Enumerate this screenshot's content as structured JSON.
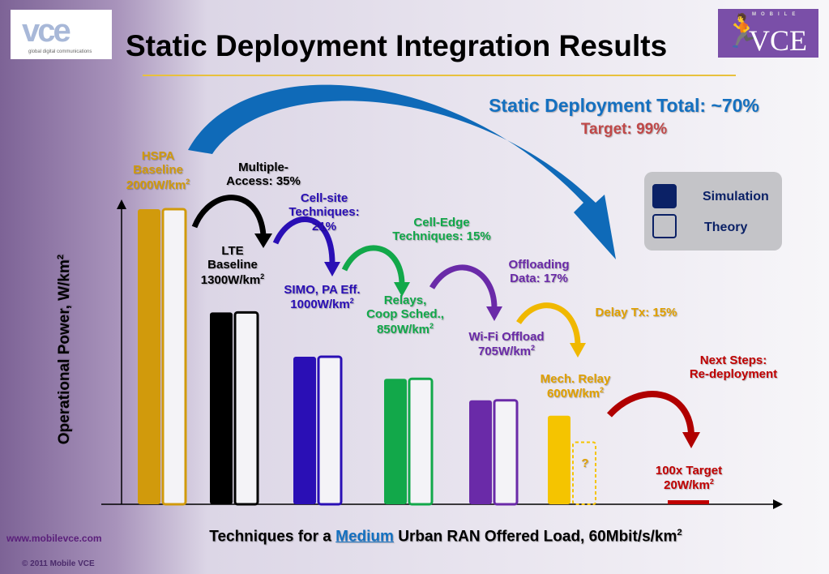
{
  "header": {
    "title": "Static Deployment Integration Results",
    "logo_left_text": "vce",
    "logo_left_sub": "global digital communications",
    "logo_right_top": "MOBILE",
    "logo_right_text": "VCE"
  },
  "summary": {
    "total": "Static Deployment Total: ~70%",
    "target": "Target: 99%"
  },
  "legend": {
    "simulation": "Simulation",
    "theory": "Theory"
  },
  "annotations": {
    "hspa": [
      "HSPA",
      "Baseline",
      "2000W/km"
    ],
    "ma": [
      "Multiple-",
      "Access: 35%"
    ],
    "lte": [
      "LTE",
      "Baseline",
      "1300W/km"
    ],
    "cellsite": [
      "Cell-site",
      "Techniques: 21%"
    ],
    "simo": [
      "SIMO, PA Eff.",
      "1000W/km"
    ],
    "celledge": [
      "Cell-Edge",
      "Techniques: 15%"
    ],
    "relays": [
      "Relays,",
      "Coop Sched.,",
      "850W/km"
    ],
    "offload": [
      "Offloading",
      "Data: 17%"
    ],
    "wifi": [
      "Wi-Fi  Offload",
      "705W/km"
    ],
    "delay": "Delay Tx: 15%",
    "mech": [
      "Mech. Relay",
      "600W/km"
    ],
    "next": [
      "Next Steps:",
      "Re-deployment"
    ],
    "target": [
      "100x Target",
      "20W/km"
    ],
    "question": "?",
    "sup": "2"
  },
  "footer": {
    "url": "www.mobilevce.com",
    "copyright": "© 2011 Mobile VCE"
  },
  "chart_data": {
    "type": "bar",
    "title": "Static Deployment Integration Results",
    "xlabel_parts": [
      "Techniques for a ",
      "Medium",
      " Urban RAN Offered Load, 60Mbit/s/km"
    ],
    "ylabel": "Operational Power, W/km",
    "ylim": [
      0,
      2000
    ],
    "categories": [
      "HSPA Baseline",
      "LTE Baseline",
      "SIMO, PA Eff.",
      "Relays, Coop Sched.",
      "Wi-Fi Offload",
      "Mech. Relay",
      "100x Target"
    ],
    "series": [
      {
        "name": "Simulation",
        "values": [
          2000,
          1300,
          1000,
          850,
          705,
          600,
          20
        ]
      },
      {
        "name": "Theory",
        "values": [
          2000,
          1300,
          1000,
          850,
          705,
          null,
          null
        ]
      }
    ],
    "colors": [
      "#d19a0c",
      "#000000",
      "#2a0fb5",
      "#12a84a",
      "#6a2aa8",
      "#f5c400",
      "#c00000"
    ]
  }
}
